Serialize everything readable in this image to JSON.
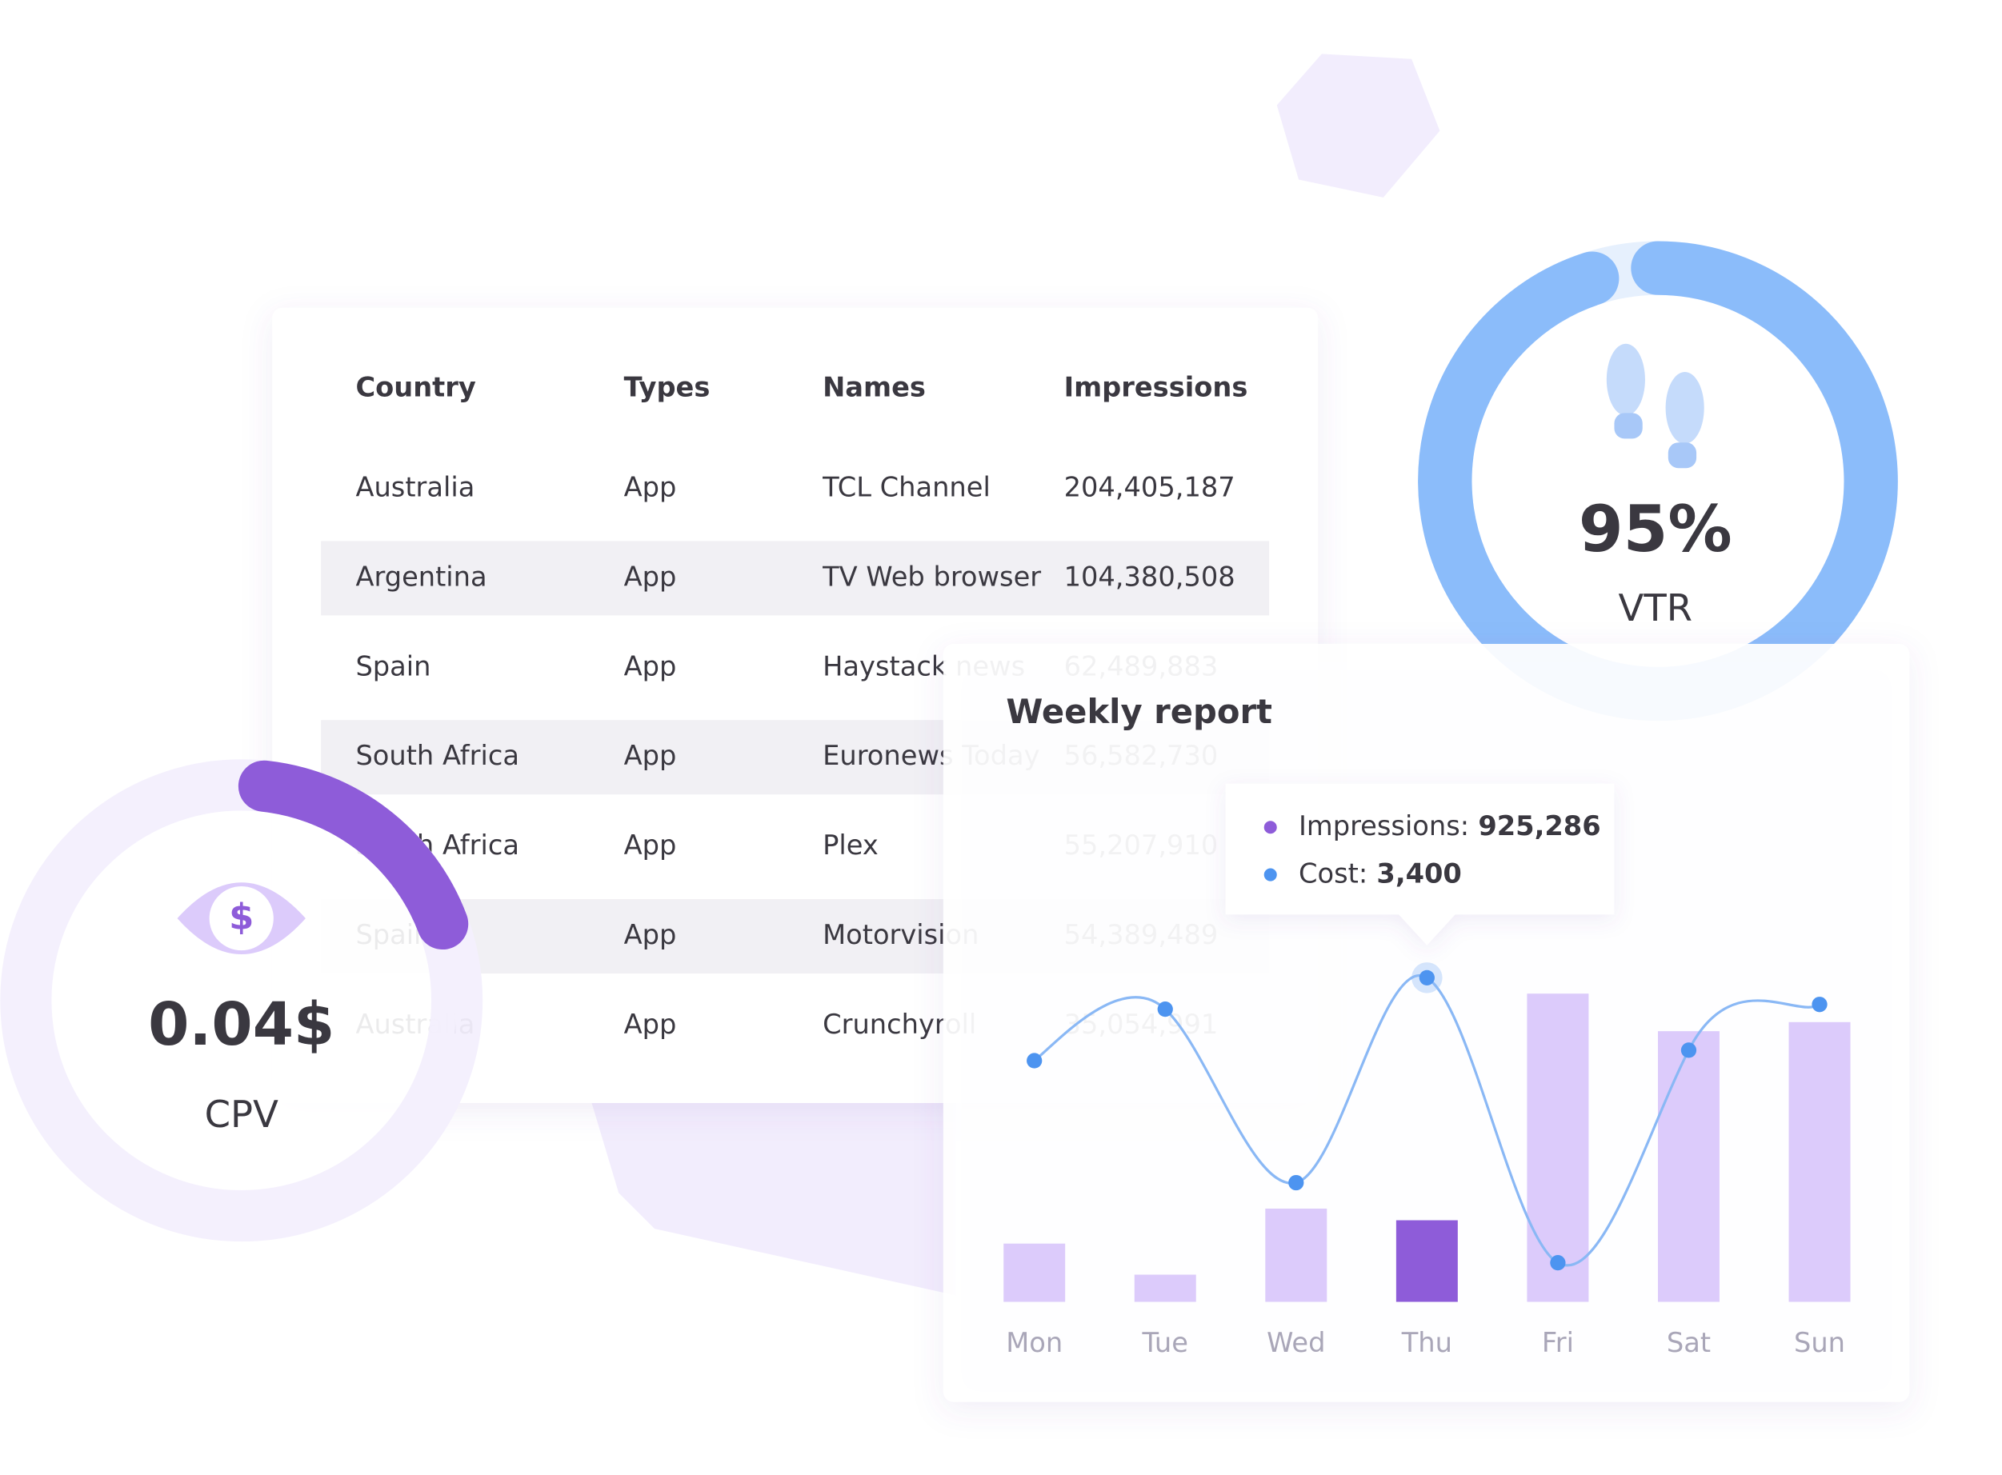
{
  "table": {
    "header": [
      "Country",
      "Types",
      "Names",
      "Impressions"
    ],
    "rows": [
      [
        "Australia",
        "App",
        "TCL Channel",
        "204,405,187"
      ],
      [
        "Argentina",
        "App",
        "TV Web browser",
        "104,380,508"
      ],
      [
        "Spain",
        "App",
        "Haystack news",
        "62,489,883"
      ],
      [
        "South Africa",
        "App",
        "Euronews Today",
        "56,582,730"
      ],
      [
        "South Africa",
        "App",
        "Plex",
        "55,207,910"
      ],
      [
        "Spain",
        "App",
        "Motorvision",
        "54,389,489"
      ],
      [
        "Australia",
        "App",
        "Crunchyroll",
        "35,054,991"
      ]
    ]
  },
  "cpv": {
    "value_text": "0.04$",
    "label": "CPV"
  },
  "vtr": {
    "value": 95,
    "value_label": "95%",
    "label": "VTR"
  },
  "chart_data": {
    "type": "bar",
    "title": "Weekly report",
    "categories": [
      "Mon",
      "Tue",
      "Wed",
      "Thu",
      "Fri",
      "Sat",
      "Sun"
    ],
    "series": [
      {
        "name": "Impressions:",
        "type": "bar",
        "color": "#dccbfb",
        "highlight_color": "#8e5cd9",
        "values": [
          660900,
          308400,
          1057500,
          925286,
          3495600,
          3069700,
          3172500
        ],
        "value_labels": [
          null,
          null,
          null,
          "925,286",
          null,
          null,
          null
        ]
      },
      {
        "name": "Cost:",
        "type": "line",
        "axis": "y2",
        "color": "#8ab8f5",
        "point_color": "#4d94f0",
        "values": [
          2530,
          3070,
          1250,
          3400,
          410,
          2640,
          3120
        ],
        "value_labels": [
          null,
          null,
          null,
          "3,400",
          null,
          null,
          null
        ]
      }
    ],
    "ylim": [
      0,
      4000000
    ],
    "y2lim": [
      0,
      3700
    ]
  }
}
